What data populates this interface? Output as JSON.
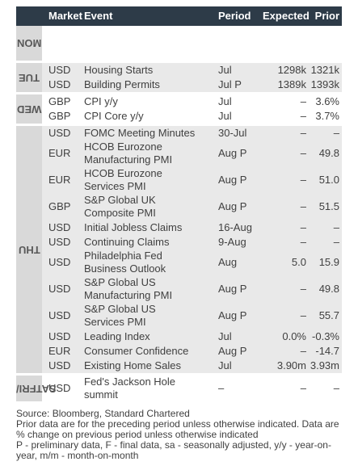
{
  "header": {
    "market": "Market",
    "event": "Event",
    "period": "Period",
    "expected": "Expected",
    "prior": "Prior"
  },
  "days": [
    {
      "label": [
        "MON"
      ],
      "rows": []
    },
    {
      "label": [
        "TUE"
      ],
      "rows": [
        {
          "market": "USD",
          "event": [
            "Housing Starts"
          ],
          "period": "Jul",
          "expected": "1298k",
          "prior": "1321k"
        },
        {
          "market": "USD",
          "event": [
            "Building Permits"
          ],
          "period": "Jul P",
          "expected": "1389k",
          "prior": "1393k"
        }
      ]
    },
    {
      "label": [
        "WED"
      ],
      "rows": [
        {
          "market": "GBP",
          "event": [
            "CPI y/y"
          ],
          "period": "Jul",
          "expected": "–",
          "prior": "3.6%"
        },
        {
          "market": "GBP",
          "event": [
            "CPI Core y/y"
          ],
          "period": "Jul",
          "expected": "–",
          "prior": "3.7%"
        }
      ]
    },
    {
      "label": [
        "THU"
      ],
      "rows": [
        {
          "market": "USD",
          "event": [
            "FOMC Meeting Minutes"
          ],
          "period": "30-Jul",
          "expected": "–",
          "prior": "–"
        },
        {
          "market": "EUR",
          "event": [
            "HCOB Eurozone",
            "Manufacturing PMI"
          ],
          "period": "Aug P",
          "expected": "–",
          "prior": "49.8"
        },
        {
          "market": "EUR",
          "event": [
            "HCOB Eurozone",
            "Services PMI"
          ],
          "period": "Aug P",
          "expected": "–",
          "prior": "51.0"
        },
        {
          "market": "GBP",
          "event": [
            "S&P Global UK",
            "Composite PMI"
          ],
          "period": "Aug P",
          "expected": "–",
          "prior": "51.5"
        },
        {
          "market": "USD",
          "event": [
            "Initial Jobless Claims"
          ],
          "period": "16-Aug",
          "expected": "–",
          "prior": "–"
        },
        {
          "market": "USD",
          "event": [
            "Continuing Claims"
          ],
          "period": "9-Aug",
          "expected": "–",
          "prior": "–"
        },
        {
          "market": "USD",
          "event": [
            "Philadelphia Fed",
            "Business Outlook"
          ],
          "period": "Aug",
          "expected": "5.0",
          "prior": "15.9"
        },
        {
          "market": "USD",
          "event": [
            "S&P Global US",
            "Manufacturing PMI"
          ],
          "period": "Aug P",
          "expected": "–",
          "prior": "49.8"
        },
        {
          "market": "USD",
          "event": [
            "S&P Global US",
            "Services PMI"
          ],
          "period": "Aug P",
          "expected": "–",
          "prior": "55.7"
        },
        {
          "market": "USD",
          "event": [
            "Leading Index"
          ],
          "period": "Jul",
          "expected": "0.0%",
          "prior": "-0.3%"
        },
        {
          "market": "EUR",
          "event": [
            "Consumer Confidence"
          ],
          "period": "Aug P",
          "expected": "–",
          "prior": "-14.7"
        },
        {
          "market": "USD",
          "event": [
            "Existing Home Sales"
          ],
          "period": "Jul",
          "expected": "3.90m",
          "prior": "3.93m"
        }
      ]
    },
    {
      "label": [
        "FRI/",
        "SAT"
      ],
      "rows": [
        {
          "market": "USD",
          "event": [
            "Fed's Jackson Hole",
            "summit"
          ],
          "period": "–",
          "expected": "–",
          "prior": "–"
        }
      ]
    }
  ],
  "footer": [
    "Source: Bloomberg, Standard Chartered",
    "Prior data are for the preceding period unless otherwise indicated. Data are % change on previous period unless otherwise indicated",
    "P - preliminary data, F - final data, sa - seasonally adjusted, y/y - year-on-year, m/m - month-on-month"
  ]
}
